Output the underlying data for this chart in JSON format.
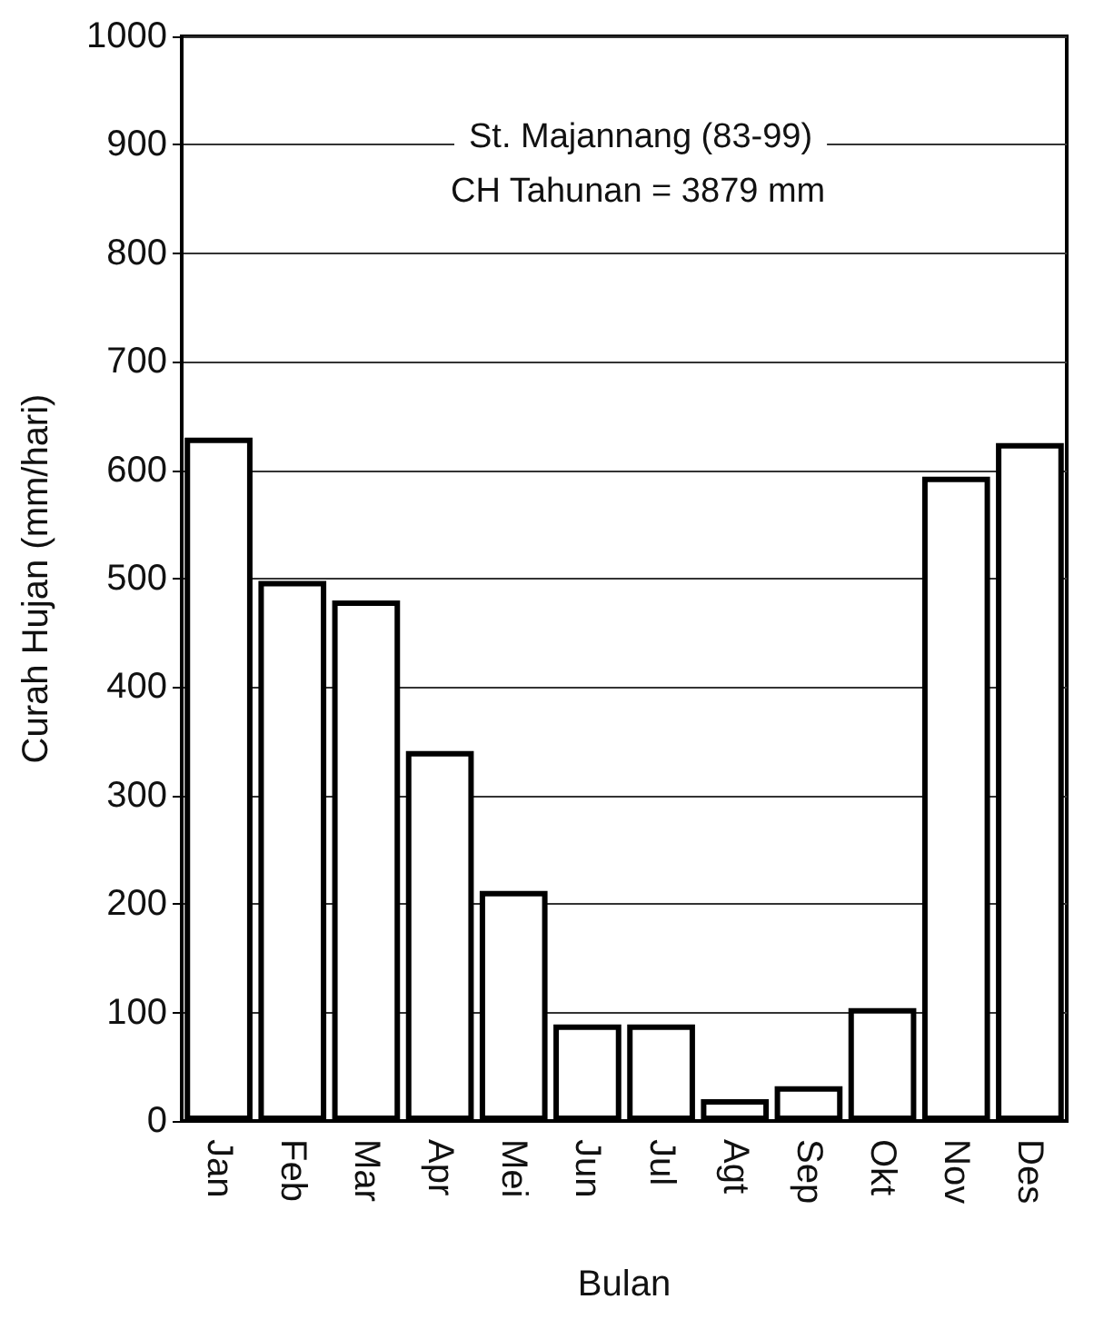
{
  "chart_data": {
    "type": "bar",
    "xlabel": "Bulan",
    "ylabel": "Curah Hujan (mm/hari)",
    "annotations": [
      "St. Majannang (83-99)",
      "CH Tahunan = 3879 mm"
    ],
    "categories": [
      "Jan",
      "Feb",
      "Mar",
      "Apr",
      "Mei",
      "Jun",
      "Jul",
      "Agt",
      "Sep",
      "Okt",
      "Nov",
      "Des"
    ],
    "values": [
      630,
      498,
      480,
      341,
      212,
      89,
      89,
      20,
      32,
      104,
      594,
      625
    ],
    "color": "#ffffff",
    "ylim": [
      0,
      1000
    ],
    "yticks": [
      0,
      100,
      200,
      300,
      400,
      500,
      600,
      700,
      800,
      900,
      1000
    ],
    "grid": "y"
  }
}
